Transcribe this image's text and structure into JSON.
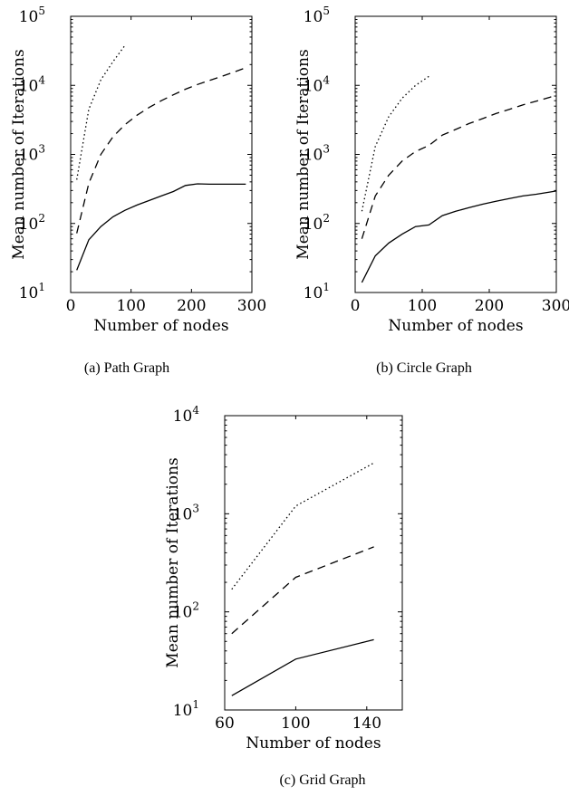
{
  "chart_data": [
    {
      "type": "line",
      "caption": "(a) Path Graph",
      "xlabel": "Number of nodes",
      "ylabel": "Mean number of Iterations",
      "xlim": [
        0,
        300
      ],
      "ylim": [
        10,
        100000
      ],
      "yscale": "log",
      "xticks": [
        "0",
        "100",
        "200",
        "300"
      ],
      "yticks": [
        {
          "base": "10",
          "exp": "1"
        },
        {
          "base": "10",
          "exp": "2"
        },
        {
          "base": "10",
          "exp": "3"
        },
        {
          "base": "10",
          "exp": "4"
        },
        {
          "base": "10",
          "exp": "5"
        }
      ],
      "grid": false,
      "series": [
        {
          "style": "solid",
          "x": [
            10,
            30,
            50,
            70,
            90,
            110,
            130,
            150,
            170,
            190,
            210,
            230,
            250,
            270,
            290
          ],
          "y": [
            21,
            58,
            90,
            125,
            155,
            185,
            215,
            250,
            290,
            355,
            375,
            370,
            370,
            370,
            370
          ]
        },
        {
          "style": "dashed",
          "x": [
            10,
            30,
            50,
            70,
            90,
            110,
            130,
            150,
            170,
            190,
            210,
            230,
            250,
            270,
            290
          ],
          "y": [
            72,
            380,
            1000,
            1800,
            2700,
            3700,
            4800,
            6000,
            7300,
            8800,
            10300,
            11800,
            13500,
            15500,
            18000
          ]
        },
        {
          "style": "dotted",
          "x": [
            10,
            30,
            50,
            70,
            90
          ],
          "y": [
            430,
            4500,
            12000,
            22000,
            38000
          ]
        }
      ]
    },
    {
      "type": "line",
      "caption": "(b) Circle Graph",
      "xlabel": "Number of nodes",
      "ylabel": "Mean number of Iterations",
      "xlim": [
        0,
        300
      ],
      "ylim": [
        10,
        100000
      ],
      "yscale": "log",
      "xticks": [
        "0",
        "100",
        "200",
        "300"
      ],
      "yticks": [
        {
          "base": "10",
          "exp": "1"
        },
        {
          "base": "10",
          "exp": "2"
        },
        {
          "base": "10",
          "exp": "3"
        },
        {
          "base": "10",
          "exp": "4"
        },
        {
          "base": "10",
          "exp": "5"
        }
      ],
      "grid": false,
      "series": [
        {
          "style": "solid",
          "x": [
            10,
            30,
            50,
            70,
            90,
            110,
            130,
            150,
            170,
            190,
            210,
            230,
            250,
            270,
            290,
            300
          ],
          "y": [
            14,
            34,
            52,
            70,
            90,
            95,
            130,
            150,
            170,
            190,
            210,
            230,
            250,
            265,
            285,
            295
          ]
        },
        {
          "style": "dashed",
          "x": [
            10,
            30,
            50,
            70,
            90,
            110,
            130,
            150,
            170,
            190,
            210,
            230,
            250,
            270,
            290,
            300
          ],
          "y": [
            60,
            250,
            500,
            800,
            1100,
            1350,
            1900,
            2300,
            2800,
            3300,
            3900,
            4500,
            5200,
            5900,
            6700,
            7200
          ]
        },
        {
          "style": "dotted",
          "x": [
            10,
            30,
            50,
            70,
            90,
            110
          ],
          "y": [
            150,
            1300,
            3500,
            6500,
            10000,
            13500
          ]
        }
      ]
    },
    {
      "type": "line",
      "caption": "(c) Grid Graph",
      "xlabel": "Number of nodes",
      "ylabel": "Mean number of Iterations",
      "xlim": [
        60,
        160
      ],
      "ylim": [
        10,
        10000
      ],
      "yscale": "log",
      "xticks": [
        "60",
        "100",
        "140"
      ],
      "yticks": [
        {
          "base": "10",
          "exp": "1"
        },
        {
          "base": "10",
          "exp": "2"
        },
        {
          "base": "10",
          "exp": "3"
        },
        {
          "base": "10",
          "exp": "4"
        }
      ],
      "grid": false,
      "series": [
        {
          "style": "solid",
          "x": [
            64,
            100,
            144
          ],
          "y": [
            14,
            33,
            52
          ]
        },
        {
          "style": "dashed",
          "x": [
            64,
            100,
            144
          ],
          "y": [
            60,
            225,
            460
          ]
        },
        {
          "style": "dotted",
          "x": [
            64,
            100,
            144
          ],
          "y": [
            170,
            1200,
            3300
          ]
        }
      ]
    }
  ]
}
